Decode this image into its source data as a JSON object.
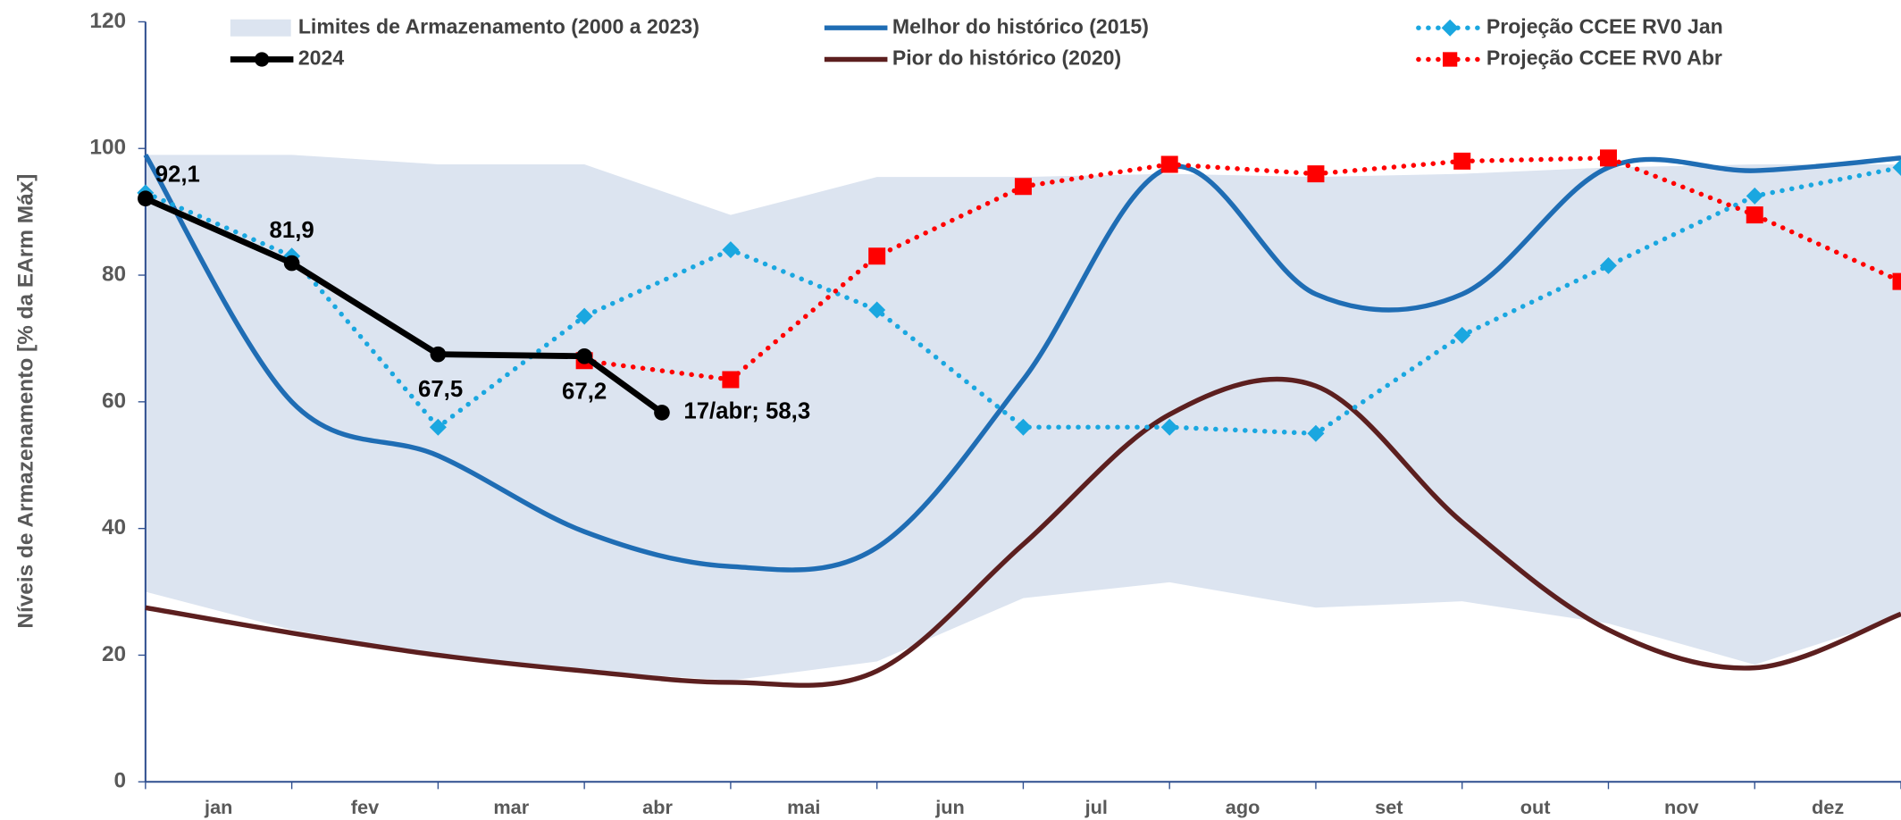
{
  "chart_data": {
    "type": "line",
    "y_label": "Níveis de Armazenamento [% da EArm Máx]",
    "x": [
      0,
      1,
      2,
      3,
      4,
      5,
      6,
      7,
      8,
      9,
      10,
      11,
      12
    ],
    "xlim": [
      0,
      12
    ],
    "xticks": [
      {
        "value": 0.5,
        "label": "jan"
      },
      {
        "value": 1.5,
        "label": "fev"
      },
      {
        "value": 2.5,
        "label": "mar"
      },
      {
        "value": 3.5,
        "label": "abr"
      },
      {
        "value": 4.5,
        "label": "mai"
      },
      {
        "value": 5.5,
        "label": "jun"
      },
      {
        "value": 6.5,
        "label": "jul"
      },
      {
        "value": 7.5,
        "label": "ago"
      },
      {
        "value": 8.5,
        "label": "set"
      },
      {
        "value": 9.5,
        "label": "out"
      },
      {
        "value": 10.5,
        "label": "nov"
      },
      {
        "value": 11.5,
        "label": "dez"
      }
    ],
    "ylim": [
      0,
      120
    ],
    "yticks": [
      0,
      20,
      40,
      60,
      80,
      100,
      120
    ],
    "grid": false,
    "series": [
      {
        "name": "Limites de Armazenamento (2000 a 2023)",
        "style": "band",
        "color": "#dce4f0",
        "values": [
          99,
          99,
          97.5,
          97.5,
          89.5,
          95.5,
          95.5,
          96,
          95.5,
          96,
          97,
          97.5,
          97.5
        ],
        "lower": [
          30,
          24,
          20,
          17.5,
          16,
          19,
          29,
          31.5,
          27.5,
          28.5,
          25,
          18.5,
          26
        ]
      },
      {
        "name": "2024",
        "style": "solid-markers",
        "color": "#000000",
        "x": [
          0,
          1,
          2,
          3,
          3.53
        ],
        "values": [
          92.1,
          81.9,
          67.5,
          67.2,
          58.3
        ],
        "value_labels": [
          "92,1",
          "81,9",
          "67,5",
          "67,2",
          "17/abr; 58,3"
        ]
      },
      {
        "name": "Melhor do histórico (2015)",
        "style": "smooth",
        "color": "#1f6db4",
        "values": [
          99,
          60,
          51.5,
          39.5,
          34,
          37,
          63.5,
          97,
          77,
          77,
          97,
          96.5,
          98.5
        ]
      },
      {
        "name": "Pior do histórico (2020)",
        "style": "smooth",
        "color": "#5c1f1f",
        "values": [
          27.5,
          23.5,
          20,
          17.5,
          15.7,
          17.5,
          37.5,
          58,
          62.5,
          41,
          24,
          18,
          26.5
        ]
      },
      {
        "name": "Projeção CCEE RV0 Jan",
        "style": "dotted-diamond",
        "color": "#1aa7e0",
        "values": [
          93,
          83,
          56,
          73.5,
          84,
          74.5,
          56,
          56,
          55,
          70.5,
          81.5,
          92.5,
          97
        ]
      },
      {
        "name": "Projeção CCEE RV0 Abr",
        "style": "dotted-square",
        "color": "#ff0000",
        "values": [
          null,
          null,
          null,
          66.5,
          63.5,
          83,
          94,
          97.5,
          96,
          98,
          98.5,
          89.5,
          79
        ]
      }
    ]
  }
}
